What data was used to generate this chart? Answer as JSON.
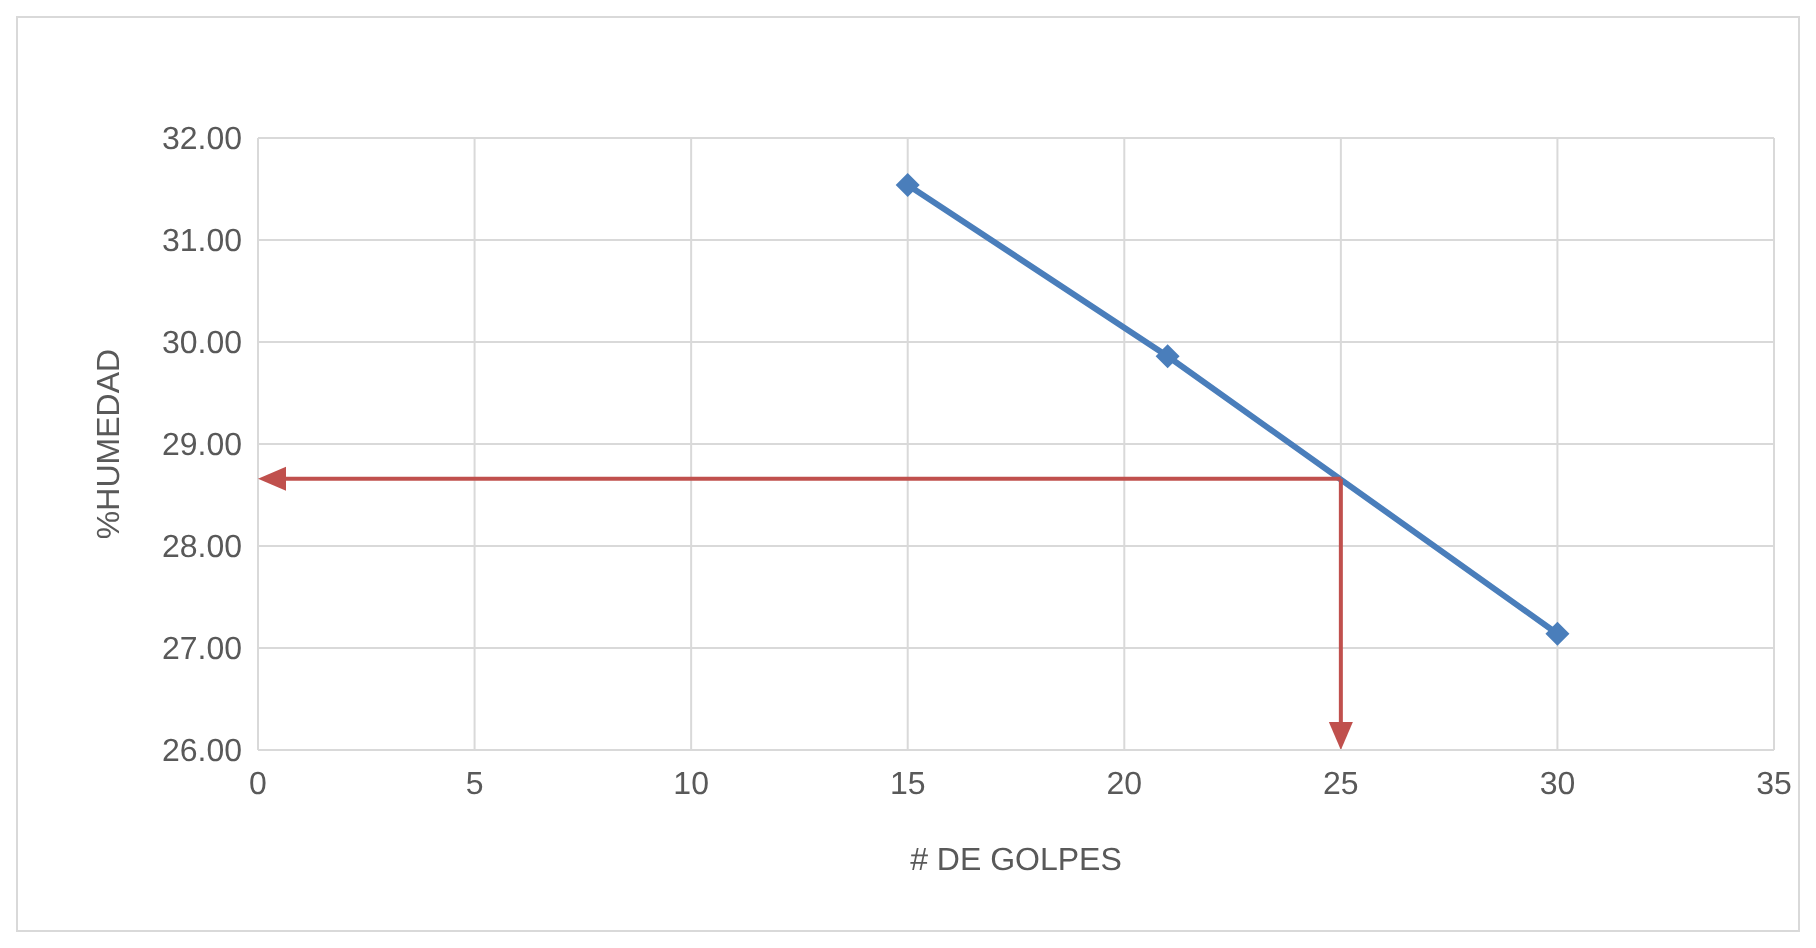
{
  "chart_data": {
    "type": "line",
    "xlabel": "# DE GOLPES",
    "ylabel": "%HUMEDAD",
    "x": [
      15,
      21,
      30
    ],
    "series": [
      {
        "color": "#4a7ebb",
        "values": [
          31.54,
          29.86,
          27.14
        ]
      }
    ],
    "xlim": [
      0,
      35
    ],
    "xticks": [
      0,
      5,
      10,
      15,
      20,
      25,
      30,
      35
    ],
    "ylim": [
      26,
      32
    ],
    "yticks": [
      {
        "value": 26,
        "label": "26.00"
      },
      {
        "value": 27,
        "label": "27.00"
      },
      {
        "value": 28,
        "label": "28.00"
      },
      {
        "value": 29,
        "label": "29.00"
      },
      {
        "value": 30,
        "label": "30.00"
      },
      {
        "value": 31,
        "label": "31.00"
      },
      {
        "value": 32,
        "label": "32.00"
      }
    ],
    "grid": true,
    "legend": false,
    "marker": "diamond",
    "line_style": "solid",
    "ref_lines": [
      {
        "axis": "x",
        "value": 25,
        "color": "#c0504d"
      },
      {
        "axis": "y",
        "value": 28.66,
        "color": "#c0504d"
      }
    ]
  }
}
